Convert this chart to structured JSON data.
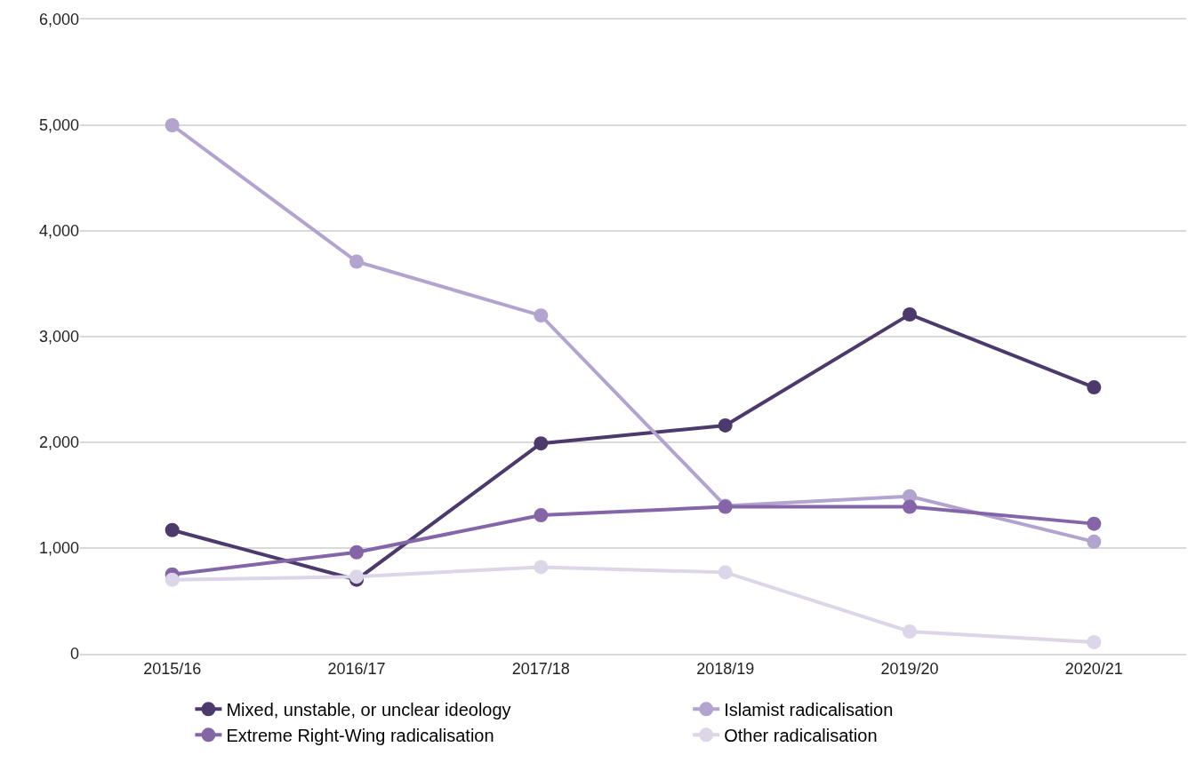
{
  "chart_data": {
    "type": "line",
    "categories": [
      "2015/16",
      "2016/17",
      "2017/18",
      "2018/19",
      "2019/20",
      "2020/21"
    ],
    "series": [
      {
        "name": "Mixed, unstable, or unclear ideology",
        "color": "#4b3a6b",
        "values": [
          1170,
          700,
          1990,
          2160,
          3210,
          2520
        ]
      },
      {
        "name": "Islamist radicalisation",
        "color": "#b3a3cf",
        "values": [
          5000,
          3710,
          3200,
          1400,
          1490,
          1060
        ]
      },
      {
        "name": "Extreme Right-Wing radicalisation",
        "color": "#8466a8",
        "values": [
          750,
          960,
          1310,
          1390,
          1390,
          1230
        ]
      },
      {
        "name": "Other radicalisation",
        "color": "#ddd5e8",
        "values": [
          700,
          730,
          820,
          770,
          210,
          110
        ]
      }
    ],
    "ylim": [
      0,
      6000
    ],
    "yticks": [
      {
        "value": 0,
        "label": "0"
      },
      {
        "value": 1000,
        "label": "1,000"
      },
      {
        "value": 2000,
        "label": "2,000"
      },
      {
        "value": 3000,
        "label": "3,000"
      },
      {
        "value": 4000,
        "label": "4,000"
      },
      {
        "value": 5000,
        "label": "5,000"
      },
      {
        "value": 6000,
        "label": "6,000"
      }
    ],
    "grid": "y",
    "legend": "bottom",
    "marker": "circle",
    "line_style": "solid"
  }
}
